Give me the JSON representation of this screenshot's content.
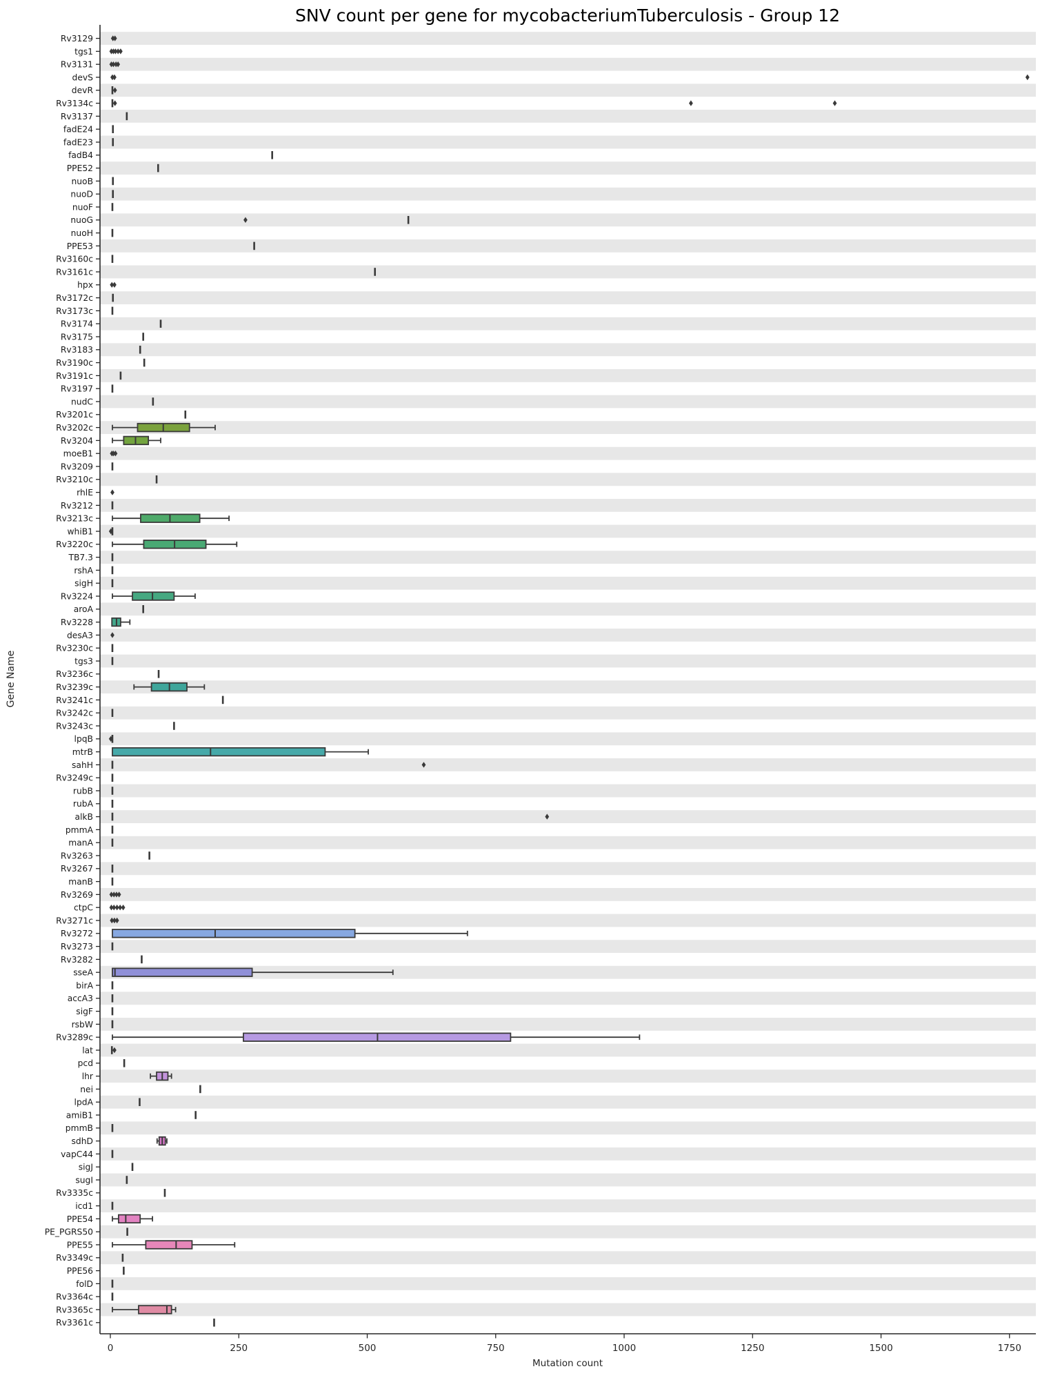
{
  "chart_data": {
    "type": "boxplot-horizontal",
    "title": "SNV count per gene for mycobacteriumTuberculosis - Group 12",
    "xlabel": "Mutation count",
    "ylabel": "Gene Name",
    "x_ticks": [
      0,
      250,
      500,
      750,
      1000,
      1250,
      1500,
      1750
    ],
    "xlim": [
      -20,
      1800
    ],
    "grid": "alternating-row-bands",
    "band_color": "#e7e7e7",
    "element_color": "#3a3a3a",
    "spine_color": "#262626",
    "legend": "none",
    "rows": [
      {
        "gene": "Rv3129",
        "kind": "points",
        "points": [
          5,
          9
        ]
      },
      {
        "gene": "tgs1",
        "kind": "points",
        "points": [
          2,
          6,
          10,
          15,
          20
        ]
      },
      {
        "gene": "Rv3131",
        "kind": "points",
        "points": [
          2,
          6,
          11,
          15
        ]
      },
      {
        "gene": "devS",
        "kind": "points",
        "points": [
          4,
          8,
          1785
        ]
      },
      {
        "gene": "devR",
        "kind": "single",
        "value": 4,
        "outliers": [
          9
        ]
      },
      {
        "gene": "Rv3134c",
        "kind": "single",
        "value": 4,
        "outliers": [
          9,
          1130,
          1410
        ]
      },
      {
        "gene": "Rv3137",
        "kind": "single",
        "value": 32
      },
      {
        "gene": "fadE24",
        "kind": "single",
        "value": 5
      },
      {
        "gene": "fadE23",
        "kind": "single",
        "value": 5
      },
      {
        "gene": "fadB4",
        "kind": "single",
        "value": 315
      },
      {
        "gene": "PPE52",
        "kind": "single",
        "value": 93
      },
      {
        "gene": "nuoB",
        "kind": "single",
        "value": 5
      },
      {
        "gene": "nuoD",
        "kind": "single",
        "value": 5
      },
      {
        "gene": "nuoF",
        "kind": "single",
        "value": 4
      },
      {
        "gene": "nuoG",
        "kind": "single",
        "value": 580,
        "outliers": [
          263
        ]
      },
      {
        "gene": "nuoH",
        "kind": "single",
        "value": 4
      },
      {
        "gene": "PPE53",
        "kind": "single",
        "value": 280
      },
      {
        "gene": "Rv3160c",
        "kind": "single",
        "value": 4
      },
      {
        "gene": "Rv3161c",
        "kind": "single",
        "value": 515
      },
      {
        "gene": "hpx",
        "kind": "points",
        "points": [
          3,
          8
        ]
      },
      {
        "gene": "Rv3172c",
        "kind": "single",
        "value": 5
      },
      {
        "gene": "Rv3173c",
        "kind": "single",
        "value": 4
      },
      {
        "gene": "Rv3174",
        "kind": "single",
        "value": 98
      },
      {
        "gene": "Rv3175",
        "kind": "single",
        "value": 64
      },
      {
        "gene": "Rv3183",
        "kind": "single",
        "value": 58
      },
      {
        "gene": "Rv3190c",
        "kind": "single",
        "value": 66
      },
      {
        "gene": "Rv3191c",
        "kind": "single",
        "value": 20
      },
      {
        "gene": "Rv3197",
        "kind": "single",
        "value": 4
      },
      {
        "gene": "nudC",
        "kind": "single",
        "value": 83
      },
      {
        "gene": "Rv3201c",
        "kind": "single",
        "value": 146
      },
      {
        "gene": "Rv3202c",
        "kind": "box",
        "min": 4,
        "q1": 53,
        "median": 103,
        "q3": 154,
        "max": 204,
        "color": "#7ba23d"
      },
      {
        "gene": "Rv3204",
        "kind": "box",
        "min": 4,
        "q1": 26,
        "median": 49,
        "q3": 74,
        "max": 98,
        "color": "#73a43f"
      },
      {
        "gene": "moeB1",
        "kind": "points",
        "points": [
          3,
          6,
          10
        ]
      },
      {
        "gene": "Rv3209",
        "kind": "single",
        "value": 4
      },
      {
        "gene": "Rv3210c",
        "kind": "single",
        "value": 90
      },
      {
        "gene": "rhlE",
        "kind": "points",
        "points": [
          4
        ]
      },
      {
        "gene": "Rv3212",
        "kind": "single",
        "value": 4
      },
      {
        "gene": "Rv3213c",
        "kind": "box",
        "min": 4,
        "q1": 59,
        "median": 116,
        "q3": 174,
        "max": 231,
        "color": "#4faa6a"
      },
      {
        "gene": "whiB1",
        "kind": "single",
        "value": 4,
        "outliers": [
          1
        ]
      },
      {
        "gene": "Rv3220c",
        "kind": "box",
        "min": 4,
        "q1": 65,
        "median": 125,
        "q3": 186,
        "max": 246,
        "color": "#4aa974"
      },
      {
        "gene": "TB7.3",
        "kind": "single",
        "value": 4
      },
      {
        "gene": "rshA",
        "kind": "single",
        "value": 4
      },
      {
        "gene": "sigH",
        "kind": "single",
        "value": 4
      },
      {
        "gene": "Rv3224",
        "kind": "box",
        "min": 4,
        "q1": 43,
        "median": 82,
        "q3": 124,
        "max": 165,
        "color": "#46a881"
      },
      {
        "gene": "aroA",
        "kind": "single",
        "value": 64
      },
      {
        "gene": "Rv3228",
        "kind": "box",
        "min": 3,
        "q1": 3,
        "median": 12,
        "q3": 20,
        "max": 38,
        "color": "#43a78b"
      },
      {
        "gene": "desA3",
        "kind": "points",
        "points": [
          4
        ]
      },
      {
        "gene": "Rv3230c",
        "kind": "single",
        "value": 4
      },
      {
        "gene": "tgs3",
        "kind": "single",
        "value": 4
      },
      {
        "gene": "Rv3236c",
        "kind": "single",
        "value": 94
      },
      {
        "gene": "Rv3239c",
        "kind": "box",
        "min": 46,
        "q1": 80,
        "median": 115,
        "q3": 149,
        "max": 183,
        "color": "#3fa69b"
      },
      {
        "gene": "Rv3241c",
        "kind": "single",
        "value": 219
      },
      {
        "gene": "Rv3242c",
        "kind": "single",
        "value": 4
      },
      {
        "gene": "Rv3243c",
        "kind": "single",
        "value": 124
      },
      {
        "gene": "lpqB",
        "kind": "single",
        "value": 4,
        "outliers": [
          1
        ]
      },
      {
        "gene": "mtrB",
        "kind": "box",
        "min": 4,
        "q1": 4,
        "median": 195,
        "q3": 418,
        "max": 502,
        "color": "#46a9a9"
      },
      {
        "gene": "sahH",
        "kind": "single",
        "value": 4,
        "outliers": [
          610
        ]
      },
      {
        "gene": "Rv3249c",
        "kind": "single",
        "value": 4
      },
      {
        "gene": "rubB",
        "kind": "single",
        "value": 4
      },
      {
        "gene": "rubA",
        "kind": "single",
        "value": 4
      },
      {
        "gene": "alkB",
        "kind": "single",
        "value": 4,
        "outliers": [
          850
        ]
      },
      {
        "gene": "pmmA",
        "kind": "single",
        "value": 4
      },
      {
        "gene": "manA",
        "kind": "single",
        "value": 4
      },
      {
        "gene": "Rv3263",
        "kind": "single",
        "value": 76
      },
      {
        "gene": "Rv3267",
        "kind": "single",
        "value": 4
      },
      {
        "gene": "manB",
        "kind": "single",
        "value": 4
      },
      {
        "gene": "Rv3269",
        "kind": "points",
        "points": [
          2,
          7,
          12,
          17
        ]
      },
      {
        "gene": "ctpC",
        "kind": "points",
        "points": [
          2,
          7,
          13,
          19,
          25
        ]
      },
      {
        "gene": "Rv3271c",
        "kind": "points",
        "points": [
          3,
          8,
          13
        ]
      },
      {
        "gene": "Rv3272",
        "kind": "box",
        "min": 4,
        "q1": 4,
        "median": 204,
        "q3": 476,
        "max": 695,
        "color": "#87a8e1"
      },
      {
        "gene": "Rv3273",
        "kind": "single",
        "value": 4
      },
      {
        "gene": "Rv3282",
        "kind": "single",
        "value": 61
      },
      {
        "gene": "sseA",
        "kind": "box",
        "min": 4,
        "q1": 4,
        "median": 9,
        "q3": 276,
        "max": 550,
        "color": "#9090d8"
      },
      {
        "gene": "birA",
        "kind": "single",
        "value": 4
      },
      {
        "gene": "accA3",
        "kind": "single",
        "value": 4
      },
      {
        "gene": "sigF",
        "kind": "single",
        "value": 4
      },
      {
        "gene": "rsbW",
        "kind": "single",
        "value": 4
      },
      {
        "gene": "Rv3289c",
        "kind": "box",
        "min": 4,
        "q1": 259,
        "median": 520,
        "q3": 779,
        "max": 1030,
        "color": "#b69ae2"
      },
      {
        "gene": "lat",
        "kind": "single",
        "value": 3,
        "outliers": [
          8
        ]
      },
      {
        "gene": "pcd",
        "kind": "single",
        "value": 27
      },
      {
        "gene": "lhr",
        "kind": "box",
        "min": 78,
        "q1": 90,
        "median": 101,
        "q3": 112,
        "max": 119,
        "color": "#c393dc"
      },
      {
        "gene": "nei",
        "kind": "single",
        "value": 175
      },
      {
        "gene": "lpdA",
        "kind": "single",
        "value": 57
      },
      {
        "gene": "amiB1",
        "kind": "single",
        "value": 166
      },
      {
        "gene": "pmmB",
        "kind": "single",
        "value": 4
      },
      {
        "gene": "sdhD",
        "kind": "box",
        "min": 91,
        "q1": 95,
        "median": 101,
        "q3": 107,
        "max": 110,
        "color": "#d678c9"
      },
      {
        "gene": "vapC44",
        "kind": "single",
        "value": 4
      },
      {
        "gene": "sigJ",
        "kind": "single",
        "value": 43
      },
      {
        "gene": "sugI",
        "kind": "single",
        "value": 32
      },
      {
        "gene": "Rv3335c",
        "kind": "single",
        "value": 106
      },
      {
        "gene": "icd1",
        "kind": "single",
        "value": 4
      },
      {
        "gene": "PPE54",
        "kind": "box",
        "min": 4,
        "q1": 16,
        "median": 30,
        "q3": 58,
        "max": 82,
        "color": "#e283c1"
      },
      {
        "gene": "PE_PGRS50",
        "kind": "single",
        "value": 33
      },
      {
        "gene": "PPE55",
        "kind": "box",
        "min": 4,
        "q1": 69,
        "median": 128,
        "q3": 159,
        "max": 242,
        "color": "#e687b9"
      },
      {
        "gene": "Rv3349c",
        "kind": "single",
        "value": 24
      },
      {
        "gene": "PPE56",
        "kind": "single",
        "value": 26
      },
      {
        "gene": "folD",
        "kind": "single",
        "value": 4
      },
      {
        "gene": "Rv3364c",
        "kind": "single",
        "value": 4
      },
      {
        "gene": "Rv3365c",
        "kind": "box",
        "min": 4,
        "q1": 55,
        "median": 110,
        "q3": 119,
        "max": 127,
        "color": "#e08ba4"
      },
      {
        "gene": "Rv3361c",
        "kind": "single",
        "value": 202
      }
    ]
  }
}
